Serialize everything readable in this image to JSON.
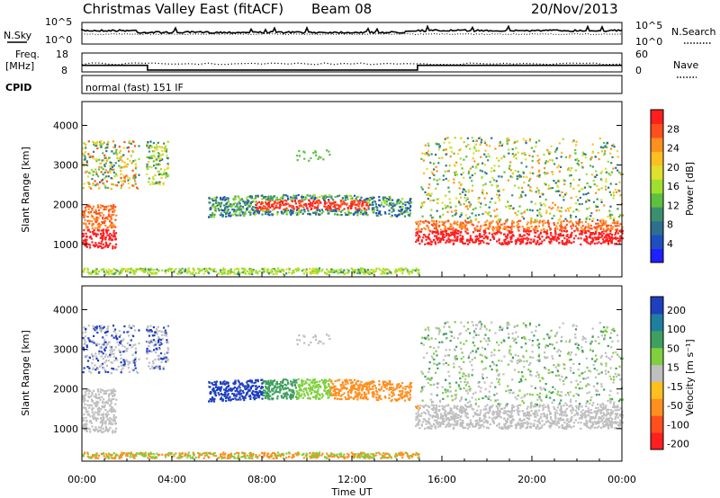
{
  "header": {
    "title": "Christmas Valley East (fitACF)",
    "beam": "Beam 08",
    "date": "20/Nov/2013"
  },
  "colors": {
    "power_scale": [
      "#1f1fff",
      "#1f4fbf",
      "#2e6e8e",
      "#3a8f6e",
      "#5fbf3f",
      "#9fdf2f",
      "#dfdf2f",
      "#ffbf1f",
      "#ff8f1f",
      "#ff4f1f",
      "#ff1f1f"
    ],
    "velocity_scale": [
      "#1f3fbf",
      "#1f7f9f",
      "#3f9f5f",
      "#7fcf3f",
      "#bfbfbf",
      "#ffbf1f",
      "#ff8f1f",
      "#ff4f1f",
      "#ff1f1f"
    ]
  },
  "chart_data": [
    {
      "type": "line",
      "name": "noise-panel",
      "series": [
        {
          "name": "N.Sky",
          "style": "solid"
        },
        {
          "name": "N.Search",
          "style": "dotted"
        }
      ],
      "left_ticks": [
        "10^5",
        "10^0"
      ],
      "right_ticks": [
        "10^5",
        "10^0"
      ]
    },
    {
      "type": "line",
      "name": "frequency-panel",
      "ylabel": "Freq. [MHz]",
      "left_ticks": [
        "18",
        "8"
      ],
      "right_ticks": [
        "60",
        "0"
      ],
      "series": [
        {
          "name": "Freq",
          "style": "solid",
          "x": [
            "00:00",
            "02:55",
            "02:55",
            "14:55",
            "14:55",
            "24:00"
          ],
          "y": [
            11.5,
            11.5,
            9.0,
            9.0,
            11.5,
            11.5
          ]
        },
        {
          "name": "Nave",
          "style": "dotted"
        }
      ]
    },
    {
      "type": "text",
      "name": "cpid-panel",
      "label": "CPID",
      "text": "normal (fast) 151 IF"
    },
    {
      "type": "heatmap",
      "name": "power-panel",
      "ylabel": "Slant Range [km]",
      "y_ticks": [
        1000,
        2000,
        3000,
        4000
      ],
      "ylim": [
        180,
        4600
      ],
      "colorbar_label": "Power [dB]",
      "colorbar_ticks": [
        4,
        8,
        12,
        16,
        20,
        24,
        28
      ]
    },
    {
      "type": "heatmap",
      "name": "velocity-panel",
      "ylabel": "Slant Range [km]",
      "y_ticks": [
        1000,
        2000,
        3000,
        4000
      ],
      "ylim": [
        180,
        4600
      ],
      "colorbar_label": "Velocity [m s⁻¹]",
      "colorbar_ticks": [
        200,
        100,
        50,
        15,
        -15,
        -50,
        -100,
        -200
      ]
    }
  ],
  "x_axis": {
    "label": "Time UT",
    "ticks": [
      "00:00",
      "04:00",
      "08:00",
      "12:00",
      "16:00",
      "20:00",
      "00:00"
    ]
  },
  "labels": {
    "n_sky": "N.Sky",
    "n_search": "N.Search",
    "freq": "Freq.",
    "mhz": "[MHz]",
    "nave": "Nave",
    "cpid": "CPID",
    "cpid_text": "normal (fast) 151 IF",
    "power_unit": "Power [dB]",
    "velocity_unit": "Velocity [m s⁻¹]"
  }
}
